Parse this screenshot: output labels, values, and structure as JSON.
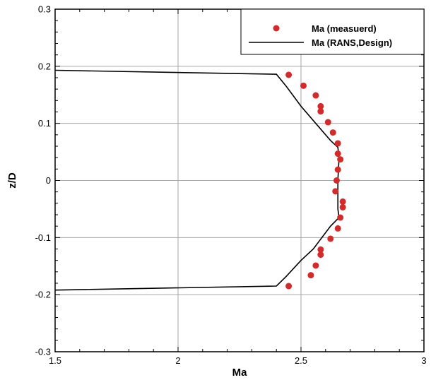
{
  "chart_data": {
    "type": "scatter",
    "xlabel": "Ma",
    "ylabel": "z/D",
    "xlim": [
      1.5,
      3
    ],
    "ylim": [
      -0.3,
      0.3
    ],
    "xticks": [
      1.5,
      2,
      2.5,
      3
    ],
    "yticks": [
      -0.3,
      -0.2,
      -0.1,
      0,
      0.1,
      0.2,
      0.3
    ],
    "xtick_labels": [
      "1.5",
      "2",
      "2.5",
      "3"
    ],
    "ytick_labels": [
      "-0.3",
      "-0.2",
      "-0.1",
      "0",
      "0.1",
      "0.2",
      "0.3"
    ],
    "grid": true,
    "legend_position": "top-right",
    "series": [
      {
        "name": "Ma (measuerd)",
        "kind": "markers",
        "color": "#d42a2a",
        "points": [
          [
            2.45,
            0.185
          ],
          [
            2.51,
            0.166
          ],
          [
            2.56,
            0.149
          ],
          [
            2.58,
            0.13
          ],
          [
            2.58,
            0.121
          ],
          [
            2.61,
            0.102
          ],
          [
            2.63,
            0.084
          ],
          [
            2.65,
            0.065
          ],
          [
            2.65,
            0.047
          ],
          [
            2.66,
            0.037
          ],
          [
            2.65,
            0.019
          ],
          [
            2.645,
            0.0
          ],
          [
            2.64,
            -0.019
          ],
          [
            2.67,
            -0.037
          ],
          [
            2.67,
            -0.047
          ],
          [
            2.66,
            -0.065
          ],
          [
            2.65,
            -0.084
          ],
          [
            2.62,
            -0.102
          ],
          [
            2.58,
            -0.121
          ],
          [
            2.58,
            -0.13
          ],
          [
            2.56,
            -0.149
          ],
          [
            2.54,
            -0.166
          ],
          [
            2.45,
            -0.185
          ]
        ]
      },
      {
        "name": "Ma (RANS,Design)",
        "kind": "line",
        "color": "#000000",
        "points": [
          [
            1.5,
            0.193
          ],
          [
            2.4,
            0.186
          ],
          [
            2.44,
            0.165
          ],
          [
            2.5,
            0.13
          ],
          [
            2.56,
            0.1
          ],
          [
            2.62,
            0.07
          ],
          [
            2.65,
            0.058
          ],
          [
            2.655,
            0.04
          ],
          [
            2.65,
            0.0
          ],
          [
            2.65,
            -0.05
          ],
          [
            2.655,
            -0.065
          ],
          [
            2.62,
            -0.08
          ],
          [
            2.55,
            -0.12
          ],
          [
            2.5,
            -0.14
          ],
          [
            2.44,
            -0.168
          ],
          [
            2.4,
            -0.185
          ],
          [
            1.5,
            -0.192
          ]
        ]
      }
    ]
  }
}
